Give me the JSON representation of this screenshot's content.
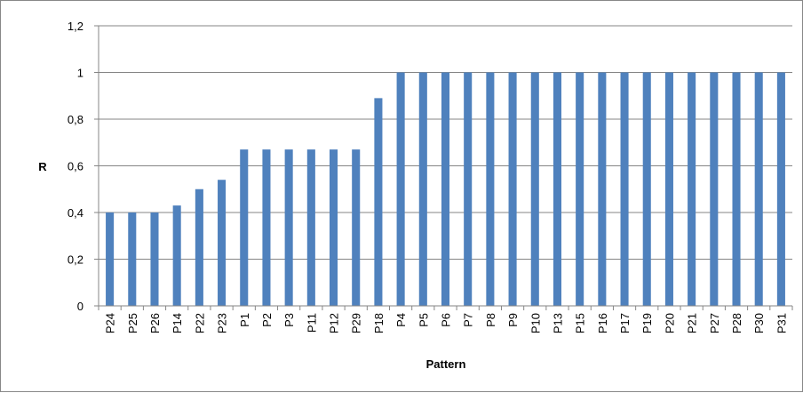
{
  "chart_data": {
    "type": "bar",
    "title": "",
    "xlabel": "Pattern",
    "ylabel": "R",
    "ylim": [
      0,
      1.2
    ],
    "y_ticks": [
      "0",
      "0,2",
      "0,4",
      "0,6",
      "0,8",
      "1",
      "1,2"
    ],
    "y_tick_values": [
      0,
      0.2,
      0.4,
      0.6,
      0.8,
      1.0,
      1.2
    ],
    "grid": true,
    "legend": "none",
    "bar_color": "#4f81bd",
    "categories": [
      "P24",
      "P25",
      "P26",
      "P14",
      "P22",
      "P23",
      "P1",
      "P2",
      "P3",
      "P11",
      "P12",
      "P29",
      "P18",
      "P4",
      "P5",
      "P6",
      "P7",
      "P8",
      "P9",
      "P10",
      "P13",
      "P15",
      "P16",
      "P17",
      "P19",
      "P20",
      "P21",
      "P27",
      "P28",
      "P30",
      "P31"
    ],
    "values": [
      0.4,
      0.4,
      0.4,
      0.43,
      0.5,
      0.54,
      0.67,
      0.67,
      0.67,
      0.67,
      0.67,
      0.67,
      0.89,
      1,
      1,
      1,
      1,
      1,
      1,
      1,
      1,
      1,
      1,
      1,
      1,
      1,
      1,
      1,
      1,
      1,
      1
    ]
  }
}
